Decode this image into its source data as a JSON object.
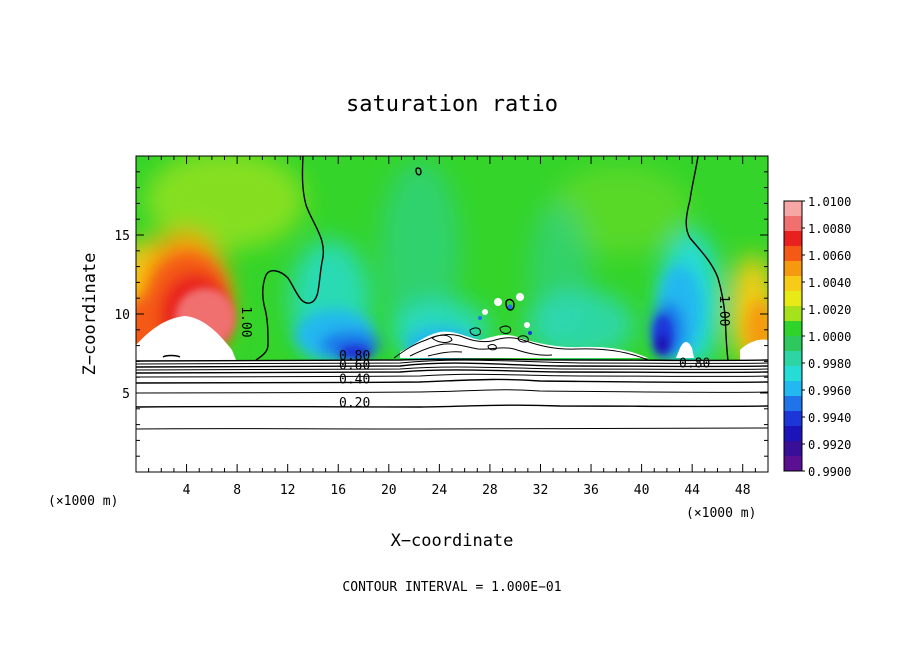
{
  "chart_data": {
    "type": "heatmap",
    "title": "saturation ratio",
    "xlabel": "X−coordinate",
    "ylabel": "Z−coordinate",
    "x_unit_left": "(×1000 m)",
    "x_unit_right": "(×1000 m)",
    "xlim": [
      0,
      50
    ],
    "ylim": [
      0,
      20
    ],
    "x_ticks": [
      4,
      8,
      12,
      16,
      20,
      24,
      28,
      32,
      36,
      40,
      44,
      48
    ],
    "y_ticks": [
      5,
      10,
      15
    ],
    "footer": "CONTOUR INTERVAL = 1.000E−01",
    "colorbar": {
      "labels": [
        "1.0100",
        "1.0080",
        "1.0060",
        "1.0040",
        "1.0020",
        "1.0000",
        "0.9980",
        "0.9960",
        "0.9940",
        "0.9920",
        "0.9900"
      ],
      "colors": [
        "#f7a6a6",
        "#f07070",
        "#e8201e",
        "#f45a16",
        "#f59a10",
        "#f6cc18",
        "#e8ea18",
        "#a6e21c",
        "#2ed42a",
        "#2ec95e",
        "#2ed5a4",
        "#26dcd6",
        "#22b8f0",
        "#1e74e8",
        "#1c36d8",
        "#1c14b8",
        "#3a0f98",
        "#5a1090"
      ]
    },
    "contour_labels": [
      {
        "text": "1.00",
        "x": 8.4,
        "z": 9.5
      },
      {
        "text": "1.00",
        "x": 46.2,
        "z": 10.2
      },
      {
        "text": "0.80",
        "x": 17.3,
        "z": 7.1
      },
      {
        "text": "0.60",
        "x": 17.3,
        "z": 6.5
      },
      {
        "text": "0.40",
        "x": 17.3,
        "z": 5.6
      },
      {
        "text": "0.20",
        "x": 17.3,
        "z": 4.1
      },
      {
        "text": "0.80",
        "x": 44.2,
        "z": 6.6
      }
    ],
    "contour_levels_lower": [
      0.9,
      0.8,
      0.7,
      0.6,
      0.5,
      0.4,
      0.3,
      0.2,
      0.1
    ]
  }
}
